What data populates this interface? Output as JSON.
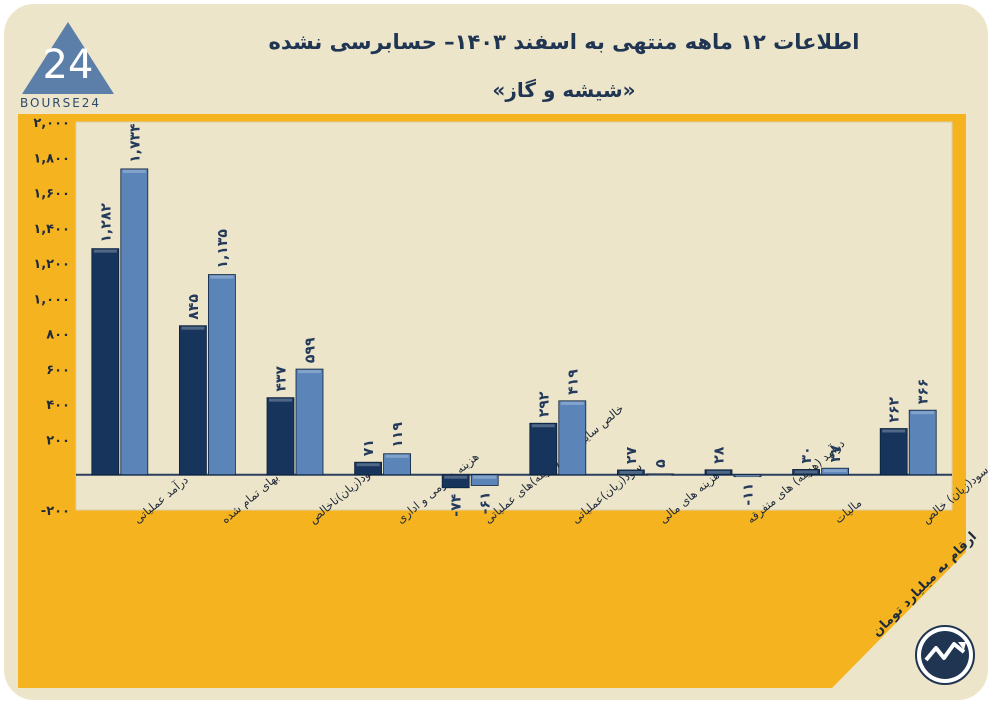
{
  "header": {
    "title": "اطلاعات ۱۲ ماهه منتهی به اسفند ۱۴۰۳– حسابرسی نشده",
    "subtitle": "«شیشه و گاز»"
  },
  "logo": {
    "text": "BOURSE24",
    "mark": "24"
  },
  "unit_note": "ارقام به میلیارد تومان",
  "colors": {
    "background": "#ede5c9",
    "panel": "#f5b41f",
    "plot": "#ede5c9",
    "series_dark": "#16345c",
    "series_light": "#5b85b8",
    "label": "#233a5c"
  },
  "chart_data": {
    "type": "bar",
    "categories": [
      "درآمد عملیاتی",
      "بهای تمام شده",
      "سود(زیان)ناخالص",
      "هزینه عمومی و اداری",
      "خالص سایر درآمد(هزینه)های عملیاتی",
      "سود(زیان)عملیاتی",
      "هزینه های مالی",
      "درآمد (هزینه) های متفرقه",
      "مالیات",
      "سود(زیان) خالص"
    ],
    "series": [
      {
        "values": [
          1282,
          845,
          437,
          71,
          -74,
          292,
          27,
          28,
          30,
          262
        ]
      },
      {
        "values": [
          1734,
          1135,
          599,
          119,
          -61,
          419,
          5,
          -11,
          37,
          366
        ]
      }
    ],
    "value_labels": [
      [
        "۱,۲۸۲",
        "۸۴۵",
        "۴۳۷",
        "۷۱",
        "-۷۴",
        "۲۹۲",
        "۲۷",
        "۲۸",
        "۳۰",
        "۲۶۲"
      ],
      [
        "۱,۷۳۴",
        "۱,۱۳۵",
        "۵۹۹",
        "۱۱۹",
        "-۶۱",
        "۴۱۹",
        "۵",
        "-۱۱",
        "۳۷",
        "۳۶۶"
      ]
    ],
    "yticks": [
      2000,
      1800,
      1600,
      1400,
      1200,
      1000,
      800,
      600,
      400,
      200,
      0,
      -200
    ],
    "ytick_labels": [
      "۲,۰۰۰",
      "۱,۸۰۰",
      "۱,۶۰۰",
      "۱,۴۰۰",
      "۱,۲۰۰",
      "۱,۰۰۰",
      "۸۰۰",
      "۶۰۰",
      "۴۰۰",
      "۲۰۰",
      "",
      "-۲۰۰"
    ],
    "ylim": [
      -200,
      2000
    ],
    "grid": false,
    "title": "",
    "xlabel": "",
    "ylabel": ""
  }
}
